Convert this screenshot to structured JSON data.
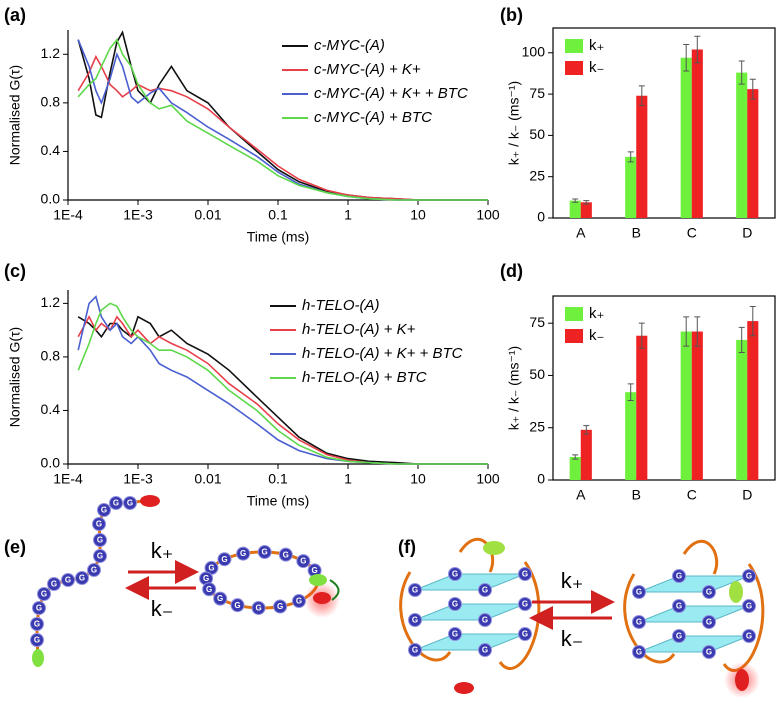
{
  "chart_data": [
    {
      "type": "line",
      "label": "(a)",
      "xlabel": "Time (ms)",
      "ylabel": "Normalised G(τ)",
      "xscale": "log",
      "xlim": [
        0.0001,
        100
      ],
      "xticks": [
        {
          "value": 0.0001,
          "label": "1E-4"
        },
        {
          "value": 0.001,
          "label": "1E-3"
        },
        0.01,
        0.1,
        1,
        10,
        100
      ],
      "ylim": [
        0,
        1.4
      ],
      "yticks": [
        {
          "value": 0,
          "label": "0.0"
        },
        0.4,
        0.8,
        1.2
      ],
      "legend": "upper right",
      "x": [
        0.00014,
        0.0002,
        0.00025,
        0.0003,
        0.0004,
        0.0005,
        0.0006,
        0.0008,
        0.001,
        0.0015,
        0.002,
        0.003,
        0.005,
        0.01,
        0.02,
        0.05,
        0.1,
        0.2,
        0.5,
        1,
        2,
        5,
        10,
        100
      ],
      "series": [
        {
          "name": "c-MYC-(A)",
          "color": "#111111",
          "values": [
            1.32,
            1.0,
            0.7,
            0.68,
            1.05,
            1.3,
            1.38,
            1.1,
            0.9,
            0.8,
            0.95,
            1.1,
            0.9,
            0.8,
            0.6,
            0.4,
            0.25,
            0.15,
            0.07,
            0.04,
            0.02,
            0.01,
            0.0,
            0.0
          ]
        },
        {
          "name": "c-MYC-(A) + K+",
          "color": "#e8404a",
          "values": [
            0.9,
            1.05,
            1.18,
            1.1,
            0.95,
            0.9,
            0.85,
            0.9,
            0.95,
            0.9,
            0.92,
            0.9,
            0.85,
            0.75,
            0.6,
            0.42,
            0.28,
            0.17,
            0.08,
            0.04,
            0.02,
            0.01,
            0.0,
            0.0
          ]
        },
        {
          "name": "c-MYC-(A) + K+ + BTC",
          "color": "#4a5fd0",
          "values": [
            1.32,
            1.1,
            0.9,
            0.8,
            1.0,
            1.2,
            1.1,
            0.85,
            0.8,
            0.88,
            0.92,
            0.8,
            0.72,
            0.6,
            0.5,
            0.36,
            0.23,
            0.13,
            0.06,
            0.03,
            0.01,
            0.0,
            0.0,
            0.0
          ]
        },
        {
          "name": "c-MYC-(A) + BTC",
          "color": "#5ed84a",
          "values": [
            0.85,
            0.95,
            1.0,
            1.1,
            1.25,
            1.32,
            1.2,
            1.1,
            0.95,
            0.8,
            0.75,
            0.78,
            0.65,
            0.55,
            0.45,
            0.32,
            0.2,
            0.12,
            0.06,
            0.03,
            0.01,
            0.0,
            0.0,
            0.0
          ]
        }
      ]
    },
    {
      "type": "bar",
      "label": "(b)",
      "ylabel": "k₊ / k₋  (ms⁻¹)",
      "categories": [
        "A",
        "B",
        "C",
        "D"
      ],
      "ylim": [
        0,
        115
      ],
      "yticks": [
        0,
        25,
        50,
        75,
        100
      ],
      "legend": "upper left",
      "series": [
        {
          "name": "k₊",
          "color": "#6ef03c",
          "values": [
            10.5,
            37,
            97,
            88
          ],
          "errors": [
            1,
            3,
            8,
            7
          ]
        },
        {
          "name": "k₋",
          "color": "#ee2222",
          "values": [
            9.5,
            74,
            102,
            78
          ],
          "errors": [
            1,
            6,
            8,
            6
          ]
        }
      ]
    },
    {
      "type": "line",
      "label": "(c)",
      "xlabel": "Time (ms)",
      "ylabel": "Normalised G(τ)",
      "xscale": "log",
      "xlim": [
        0.0001,
        100
      ],
      "xticks": [
        {
          "value": 0.0001,
          "label": "1E-4"
        },
        {
          "value": 0.001,
          "label": "1E-3"
        },
        0.01,
        0.1,
        1,
        10,
        100
      ],
      "ylim": [
        0,
        1.3
      ],
      "yticks": [
        {
          "value": 0,
          "label": "0.0"
        },
        0.4,
        0.8,
        1.2
      ],
      "legend": "upper right",
      "x": [
        0.00014,
        0.0002,
        0.00025,
        0.0003,
        0.0004,
        0.0005,
        0.0006,
        0.0008,
        0.001,
        0.0015,
        0.002,
        0.003,
        0.005,
        0.01,
        0.02,
        0.05,
        0.1,
        0.2,
        0.5,
        1,
        2,
        5,
        10,
        100
      ],
      "series": [
        {
          "name": "h-TELO-(A)",
          "color": "#111111",
          "values": [
            1.1,
            1.05,
            1.0,
            0.95,
            1.05,
            1.05,
            1.0,
            0.95,
            1.1,
            1.05,
            0.95,
            1.0,
            0.9,
            0.82,
            0.7,
            0.5,
            0.35,
            0.2,
            0.08,
            0.04,
            0.02,
            0.01,
            0.0,
            0.0
          ]
        },
        {
          "name": "h-TELO-(A) + K+",
          "color": "#e8404a",
          "values": [
            0.95,
            1.1,
            1.0,
            1.05,
            1.0,
            1.1,
            1.05,
            0.95,
            1.0,
            0.9,
            0.95,
            0.9,
            0.85,
            0.75,
            0.6,
            0.45,
            0.3,
            0.18,
            0.07,
            0.03,
            0.01,
            0.0,
            0.0,
            0.0
          ]
        },
        {
          "name": "h-TELO-(A) + K+ + BTC",
          "color": "#4a5fd0",
          "values": [
            0.85,
            1.2,
            1.25,
            1.1,
            1.0,
            1.05,
            0.95,
            0.9,
            0.95,
            0.85,
            0.75,
            0.7,
            0.65,
            0.55,
            0.45,
            0.3,
            0.18,
            0.1,
            0.04,
            0.02,
            0.01,
            0.0,
            0.0,
            0.0
          ]
        },
        {
          "name": "h-TELO-(A) + BTC",
          "color": "#5ed84a",
          "values": [
            0.7,
            0.9,
            1.05,
            1.15,
            1.2,
            1.18,
            1.1,
            1.0,
            0.95,
            0.9,
            0.85,
            0.85,
            0.8,
            0.7,
            0.55,
            0.4,
            0.25,
            0.14,
            0.05,
            0.02,
            0.01,
            0.0,
            0.0,
            0.0
          ]
        }
      ]
    },
    {
      "type": "bar",
      "label": "(d)",
      "ylabel": "k₊ / k₋  (ms⁻¹)",
      "categories": [
        "A",
        "B",
        "C",
        "D"
      ],
      "ylim": [
        0,
        88
      ],
      "yticks": [
        0,
        25,
        50,
        75
      ],
      "legend": "upper left",
      "series": [
        {
          "name": "k₊",
          "color": "#6ef03c",
          "values": [
            11,
            42,
            71,
            67
          ],
          "errors": [
            1,
            4,
            7,
            6
          ]
        },
        {
          "name": "k₋",
          "color": "#ee2222",
          "values": [
            24,
            69,
            71,
            76
          ],
          "errors": [
            2,
            6,
            7,
            7
          ]
        }
      ]
    }
  ],
  "diagrams": [
    {
      "label": "(e)",
      "bead": "G",
      "forward": "k₊",
      "backward": "k₋"
    },
    {
      "label": "(f)",
      "bead": "G",
      "forward": "k₊",
      "backward": "k₋"
    }
  ]
}
